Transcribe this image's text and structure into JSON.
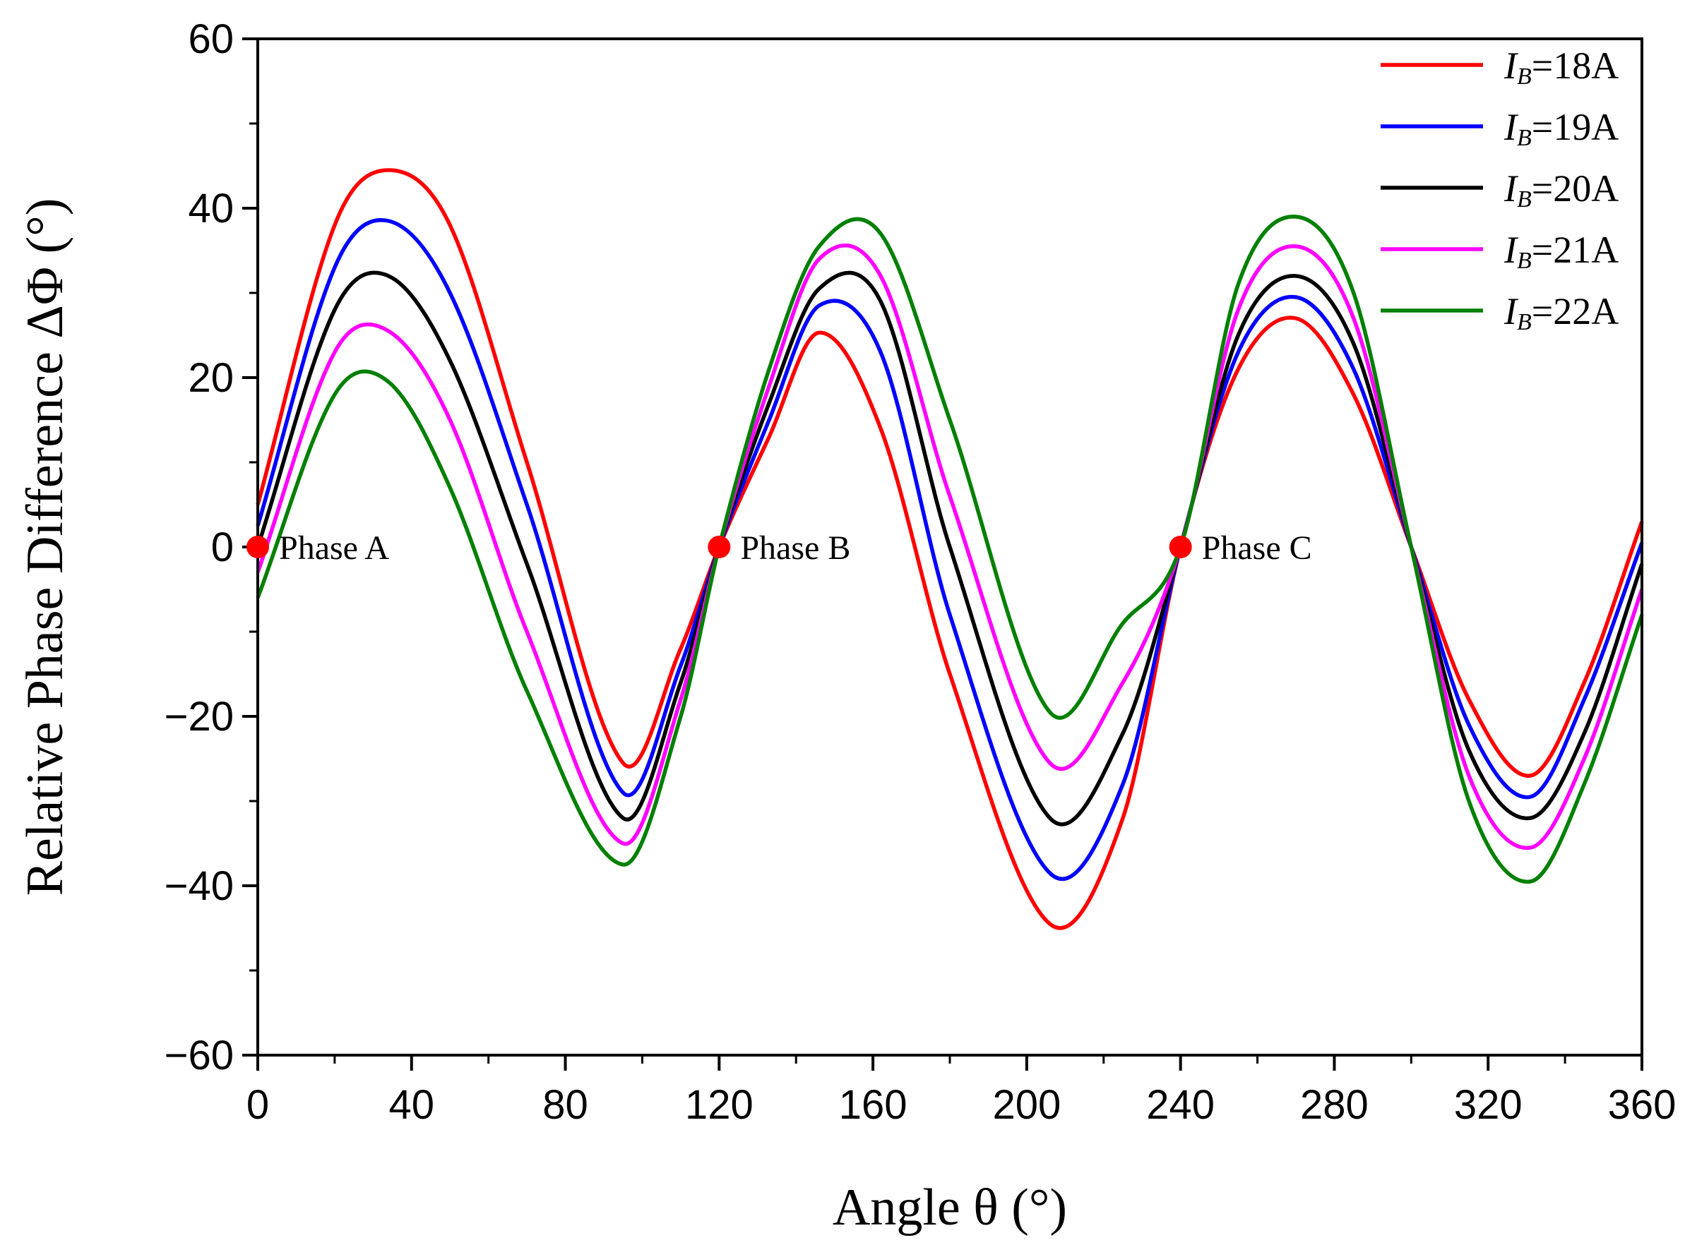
{
  "chart_data": {
    "type": "line",
    "title": "",
    "xlabel": "Angle θ (°)",
    "ylabel": "Relative Phase Difference ΔΦ (°)",
    "xlim": [
      0,
      360
    ],
    "ylim": [
      -60,
      60
    ],
    "xticks": [
      0,
      40,
      80,
      120,
      160,
      200,
      240,
      280,
      320,
      360
    ],
    "xtick_labels": [
      "0",
      "40",
      "80",
      "120",
      "160",
      "200",
      "240",
      "280",
      "320",
      "360"
    ],
    "yticks": [
      60,
      40,
      20,
      0,
      -20,
      -40,
      -60
    ],
    "ytick_labels": [
      "60",
      "40",
      "20",
      "0",
      "−20",
      "−40",
      "−60"
    ],
    "grid": false,
    "legend_position": "top-right",
    "x": [
      0,
      20,
      34,
      50,
      70,
      95,
      110,
      120,
      133,
      146,
      162,
      180,
      206,
      225,
      240,
      255,
      270,
      285,
      300,
      315,
      331,
      345,
      360
    ],
    "series": [
      {
        "name": "IB=18A",
        "label_italic": "I",
        "label_sub": "B",
        "label_rest": "=18A",
        "color": "#ff0000",
        "values": [
          5,
          38,
          44.5,
          38,
          10,
          -25.5,
          -12,
          0,
          13,
          25.3,
          14,
          -15,
          -44.5,
          -32,
          0,
          21,
          27,
          18,
          0,
          -18,
          -27,
          -16,
          3
        ]
      },
      {
        "name": "IB=19A",
        "label_italic": "I",
        "label_sub": "B",
        "label_rest": "=19A",
        "color": "#0000ff",
        "values": [
          2.5,
          33,
          38.5,
          30,
          5,
          -29,
          -14,
          0,
          15,
          28.5,
          23,
          -8,
          -38.5,
          -28,
          0,
          23,
          29.5,
          21,
          0,
          -21,
          -29.5,
          -18,
          0.5
        ]
      },
      {
        "name": "IB=20A",
        "label_italic": "I",
        "label_sub": "B",
        "label_rest": "=20A",
        "color": "#000000",
        "values": [
          0,
          28,
          32,
          22,
          -2,
          -32,
          -16,
          0,
          17,
          30.5,
          29,
          0,
          -32,
          -22,
          0,
          25,
          32,
          24,
          0,
          -24,
          -32,
          -22,
          -2
        ]
      },
      {
        "name": "IB=21A",
        "label_italic": "I",
        "label_sub": "B",
        "label_rest": "=21A",
        "color": "#ff00ff",
        "values": [
          -3,
          23,
          25.5,
          15,
          -10,
          -35,
          -18,
          0,
          19,
          34,
          32,
          6,
          -25.5,
          -16,
          0,
          28,
          35.5,
          27,
          0,
          -27,
          -35.5,
          -25,
          -5
        ]
      },
      {
        "name": "IB=22A",
        "label_italic": "I",
        "label_sub": "B",
        "label_rest": "=22A",
        "color": "#008000",
        "values": [
          -6,
          18,
          19.5,
          7,
          -17,
          -37.5,
          -20,
          0,
          21,
          35.5,
          37,
          15,
          -19.5,
          -9,
          0,
          31,
          39,
          30,
          0,
          -30,
          -39.5,
          -28,
          -8
        ]
      }
    ],
    "annotations": [
      {
        "label": "Phase A",
        "x": 0,
        "y": 0,
        "color": "#ff0000"
      },
      {
        "label": "Phase B",
        "x": 120,
        "y": 0,
        "color": "#ff0000"
      },
      {
        "label": "Phase C",
        "x": 240,
        "y": 0,
        "color": "#ff0000"
      }
    ]
  }
}
